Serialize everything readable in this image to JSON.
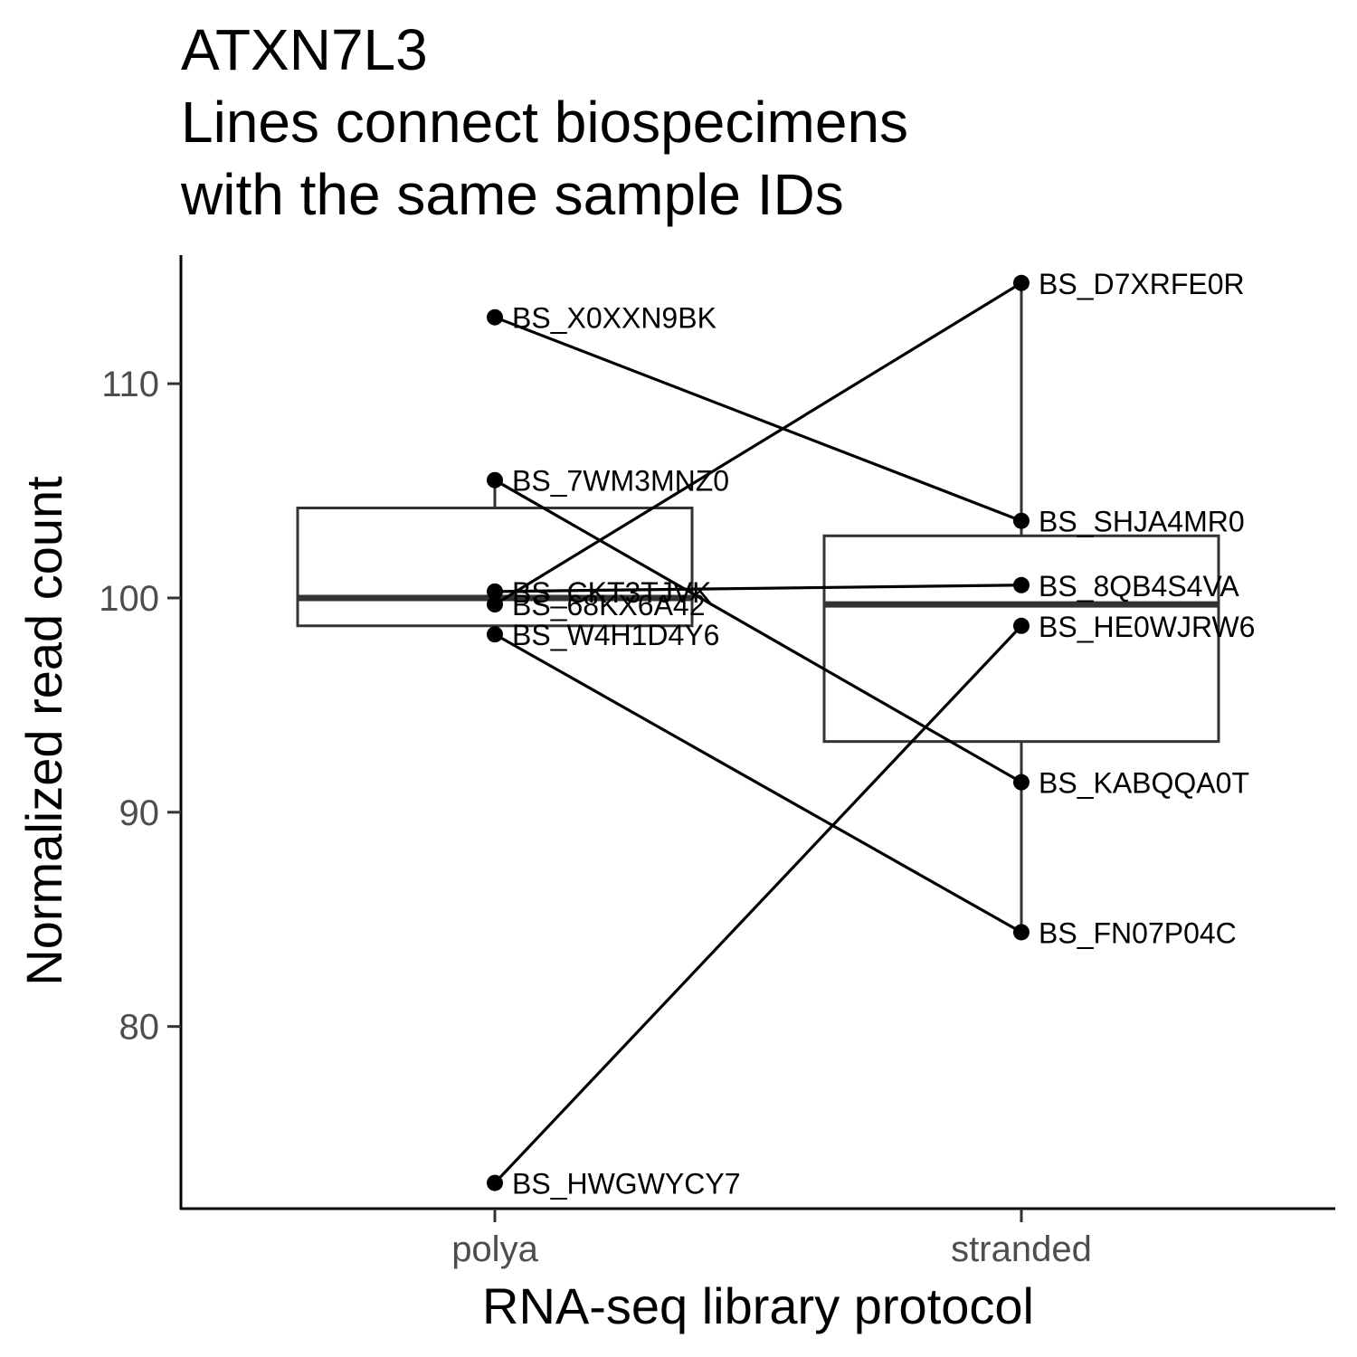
{
  "chart_data": {
    "type": "box",
    "title": [
      "ATXN7L3",
      "Lines connect biospecimens",
      "with the same sample IDs"
    ],
    "xlabel": "RNA-seq library protocol",
    "ylabel": "Normalized read count",
    "categories": [
      "polya",
      "stranded"
    ],
    "yticks": [
      80,
      90,
      100,
      110
    ],
    "ylim": [
      71.5,
      116
    ],
    "grid": false,
    "legend": "none",
    "boxes": [
      {
        "category": "polya",
        "lower_whisker": 98.3,
        "q1": 98.7,
        "median": 100.0,
        "q3": 104.2,
        "upper_whisker": 105.5
      },
      {
        "category": "stranded",
        "lower_whisker": 84.4,
        "q1": 93.3,
        "median": 99.7,
        "q3": 102.9,
        "upper_whisker": 114.7
      }
    ],
    "points": [
      {
        "category": "polya",
        "label": "BS_X0XXN9BK",
        "value": 113.1
      },
      {
        "category": "polya",
        "label": "BS_7WM3MNZ0",
        "value": 105.5
      },
      {
        "category": "polya",
        "label": "BS_CKT3TJVK",
        "value": 100.3
      },
      {
        "category": "polya",
        "label": "BS_68KX6A42",
        "value": 99.7
      },
      {
        "category": "polya",
        "label": "BS_W4H1D4Y6",
        "value": 98.3
      },
      {
        "category": "polya",
        "label": "BS_HWGWYCY7",
        "value": 72.7
      },
      {
        "category": "stranded",
        "label": "BS_D7XRFE0R",
        "value": 114.7
      },
      {
        "category": "stranded",
        "label": "BS_SHJA4MR0",
        "value": 103.6
      },
      {
        "category": "stranded",
        "label": "BS_8QB4S4VA",
        "value": 100.6
      },
      {
        "category": "stranded",
        "label": "BS_HE0WJRW6",
        "value": 98.7
      },
      {
        "category": "stranded",
        "label": "BS_KABQQA0T",
        "value": 91.4
      },
      {
        "category": "stranded",
        "label": "BS_FN07P04C",
        "value": 84.4
      }
    ],
    "pairs": [
      {
        "polya": 113.1,
        "stranded": 103.6
      },
      {
        "polya": 105.5,
        "stranded": 91.4
      },
      {
        "polya": 100.3,
        "stranded": 100.6
      },
      {
        "polya": 99.7,
        "stranded": 114.7
      },
      {
        "polya": 98.3,
        "stranded": 84.4
      },
      {
        "polya": 72.7,
        "stranded": 98.7
      }
    ]
  }
}
